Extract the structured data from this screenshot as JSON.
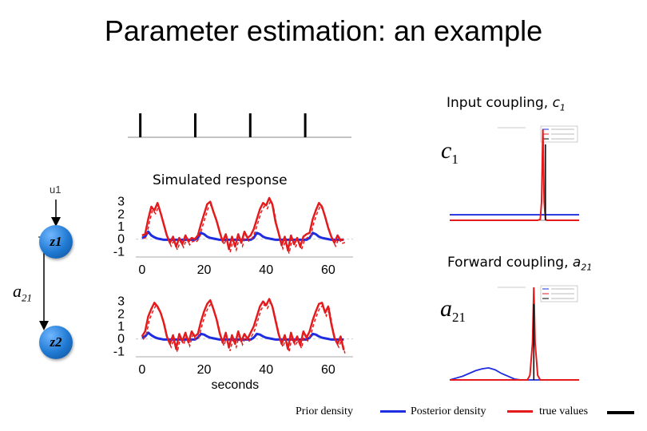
{
  "title": "Parameter estimation: an example",
  "input_coupling_label": "Input coupling,",
  "input_coupling_symbol": "c",
  "input_coupling_sub": "1",
  "forward_coupling_label": "Forward coupling,",
  "forward_coupling_symbol": "a",
  "forward_coupling_sub": "21",
  "simulated_response_label": "Simulated response",
  "diagram": {
    "input_label": "u1",
    "node1_label": "z1",
    "node2_label": "z2",
    "edge_label_symbol": "a",
    "edge_label_sub": "21"
  },
  "legend": {
    "prior": "Prior density",
    "posterior": "Posterior density",
    "true": "true values"
  },
  "colors": {
    "fit": "#1f2de0",
    "response": "#e41a1c",
    "truth": "#000000",
    "node": "#1f78d1"
  },
  "chart_data": [
    {
      "type": "line",
      "name": "input stimulus",
      "x": [
        2,
        20,
        38,
        56
      ],
      "values": [
        1,
        1,
        1,
        1
      ],
      "xlim": [
        0,
        68
      ]
    },
    {
      "type": "line",
      "name": "simulated response z1",
      "xlabel": "",
      "xlim": [
        -2,
        68
      ],
      "ylim": [
        -1.3,
        3.3
      ],
      "xticks": [
        0,
        20,
        40,
        60
      ],
      "yticks": [
        3,
        2,
        1,
        0,
        -1
      ],
      "x": [
        0,
        1,
        2,
        3,
        4,
        5,
        6,
        7,
        8,
        9,
        10,
        11,
        12,
        13,
        14,
        15,
        16,
        17,
        18,
        19,
        20,
        21,
        22,
        23,
        24,
        25,
        26,
        27,
        28,
        29,
        30,
        31,
        32,
        33,
        34,
        35,
        36,
        37,
        38,
        39,
        40,
        41,
        42,
        43,
        44,
        45,
        46,
        47,
        48,
        49,
        50,
        51,
        52,
        53,
        54,
        55,
        56,
        57,
        58,
        59,
        60,
        61,
        62,
        63,
        64,
        65
      ],
      "series": [
        {
          "values": [
            0.3,
            0.4,
            1.6,
            2.6,
            2.3,
            2.9,
            2.1,
            1.2,
            0.3,
            -0.3,
            0.2,
            -0.6,
            0.1,
            -0.4,
            0.3,
            -0.2,
            0.1,
            0.0,
            0.3,
            1.2,
            2.0,
            2.8,
            3.0,
            2.2,
            1.5,
            0.6,
            -0.2,
            0.4,
            -0.8,
            0.2,
            -0.6,
            0.4,
            -0.3,
            0.6,
            0.1,
            0.3,
            0.8,
            1.6,
            2.4,
            2.9,
            2.7,
            3.3,
            2.8,
            1.4,
            0.5,
            -0.5,
            0.2,
            -0.9,
            0.3,
            -0.4,
            0.1,
            -0.6,
            0.2,
            0.4,
            0.5,
            1.6,
            2.3,
            2.9,
            2.6,
            1.8,
            0.9,
            0.2,
            -0.3,
            0.3,
            -0.1,
            0.0
          ]
        },
        {
          "values": [
            0.1,
            0.2,
            0.6,
            0.3,
            0.15,
            0.05,
            0.0,
            -0.05,
            -0.05,
            -0.05,
            -0.05,
            -0.05,
            -0.05,
            -0.05,
            -0.05,
            -0.05,
            -0.05,
            -0.05,
            0.1,
            0.5,
            0.4,
            0.2,
            0.1,
            0.05,
            0.0,
            -0.05,
            -0.05,
            -0.05,
            -0.05,
            -0.05,
            -0.05,
            -0.05,
            -0.05,
            -0.05,
            -0.05,
            -0.05,
            0.1,
            0.5,
            0.4,
            0.2,
            0.1,
            0.05,
            0.0,
            -0.05,
            -0.05,
            -0.05,
            -0.05,
            -0.05,
            -0.05,
            -0.05,
            -0.05,
            -0.05,
            -0.05,
            -0.05,
            0.1,
            0.5,
            0.4,
            0.2,
            0.1,
            0.05,
            0.0,
            -0.05,
            -0.05,
            -0.05,
            -0.05,
            -0.05
          ]
        }
      ]
    },
    {
      "type": "line",
      "name": "simulated response z2",
      "xlabel": "seconds",
      "xlim": [
        -2,
        68
      ],
      "ylim": [
        -1.3,
        3.3
      ],
      "xticks": [
        0,
        20,
        40,
        60
      ],
      "yticks": [
        3,
        2,
        1,
        0,
        -1
      ],
      "x": [
        0,
        1,
        2,
        3,
        4,
        5,
        6,
        7,
        8,
        9,
        10,
        11,
        12,
        13,
        14,
        15,
        16,
        17,
        18,
        19,
        20,
        21,
        22,
        23,
        24,
        25,
        26,
        27,
        28,
        29,
        30,
        31,
        32,
        33,
        34,
        35,
        36,
        37,
        38,
        39,
        40,
        41,
        42,
        43,
        44,
        45,
        46,
        47,
        48,
        49,
        50,
        51,
        52,
        53,
        54,
        55,
        56,
        57,
        58,
        59,
        60,
        61,
        62,
        63,
        64,
        65
      ],
      "series": [
        {
          "values": [
            0.2,
            0.6,
            1.8,
            2.4,
            2.9,
            2.6,
            2.1,
            1.3,
            0.2,
            -0.4,
            0.3,
            -0.8,
            0.4,
            -0.2,
            0.5,
            -0.3,
            0.6,
            0.2,
            0.4,
            1.4,
            2.2,
            2.8,
            3.1,
            2.4,
            1.6,
            0.5,
            -0.3,
            0.5,
            -0.7,
            0.3,
            -0.4,
            0.6,
            -0.2,
            0.4,
            0.0,
            0.5,
            1.0,
            1.8,
            2.6,
            3.0,
            2.7,
            3.2,
            2.6,
            1.5,
            0.4,
            -0.4,
            0.3,
            -0.8,
            0.5,
            -0.3,
            0.2,
            -0.5,
            0.6,
            0.1,
            0.6,
            1.5,
            2.2,
            2.8,
            2.9,
            2.1,
            2.6,
            1.2,
            0.1,
            -0.4,
            0.2,
            -0.9
          ]
        },
        {
          "values": [
            0.1,
            0.2,
            0.5,
            0.3,
            0.15,
            0.05,
            0.0,
            -0.05,
            -0.05,
            -0.05,
            -0.05,
            -0.05,
            -0.05,
            -0.05,
            -0.05,
            -0.05,
            -0.05,
            -0.05,
            0.1,
            0.4,
            0.35,
            0.2,
            0.1,
            0.05,
            0.0,
            -0.05,
            -0.05,
            -0.05,
            -0.05,
            -0.05,
            -0.05,
            -0.05,
            -0.05,
            -0.05,
            -0.05,
            -0.05,
            0.1,
            0.4,
            0.35,
            0.2,
            0.1,
            0.05,
            0.0,
            -0.05,
            -0.05,
            -0.05,
            -0.05,
            -0.05,
            -0.05,
            -0.05,
            -0.05,
            -0.05,
            -0.05,
            -0.05,
            0.1,
            0.4,
            0.35,
            0.2,
            0.1,
            0.05,
            0.0,
            -0.05,
            -0.05,
            -0.05,
            -0.05,
            -0.05
          ]
        }
      ]
    },
    {
      "type": "line",
      "name": "density c1",
      "xlim": [
        0,
        1
      ],
      "ylim": [
        0,
        1
      ],
      "x": [
        0,
        0.1,
        0.2,
        0.3,
        0.4,
        0.5,
        0.6,
        0.65,
        0.68,
        0.7,
        0.71,
        0.72,
        0.73,
        0.74,
        0.75,
        0.76,
        0.78,
        0.8,
        0.9,
        1.0
      ],
      "series": [
        {
          "values": [
            0,
            0,
            0,
            0,
            0,
            0,
            0,
            0,
            0,
            0.01,
            0.2,
            0.98,
            0.2,
            0.01,
            0,
            0,
            0,
            0,
            0,
            0
          ]
        },
        {
          "values": [
            0.06,
            0.06,
            0.06,
            0.06,
            0.06,
            0.06,
            0.06,
            0.06,
            0.06,
            0.06,
            0.06,
            0.06,
            0.06,
            0.06,
            0.06,
            0.06,
            0.06,
            0.06,
            0.06,
            0.06
          ]
        }
      ],
      "true_value": 0.74
    },
    {
      "type": "line",
      "name": "density a21",
      "xlim": [
        0,
        1
      ],
      "ylim": [
        0,
        1
      ],
      "x": [
        0,
        0.05,
        0.1,
        0.15,
        0.2,
        0.25,
        0.3,
        0.35,
        0.4,
        0.45,
        0.5,
        0.55,
        0.6,
        0.62,
        0.64,
        0.65,
        0.66,
        0.68,
        0.7,
        0.8,
        0.9,
        1.0
      ],
      "series": [
        {
          "values": [
            0,
            0,
            0,
            0,
            0,
            0,
            0,
            0,
            0,
            0,
            0,
            0,
            0,
            0.05,
            0.4,
            1.0,
            0.4,
            0.05,
            0,
            0,
            0,
            0
          ]
        },
        {
          "values": [
            0,
            0.02,
            0.04,
            0.07,
            0.1,
            0.12,
            0.13,
            0.11,
            0.07,
            0.04,
            0.01,
            0,
            0,
            0,
            0,
            0,
            0,
            0,
            0,
            0,
            0,
            0
          ]
        }
      ],
      "true_value": 0.65
    }
  ]
}
